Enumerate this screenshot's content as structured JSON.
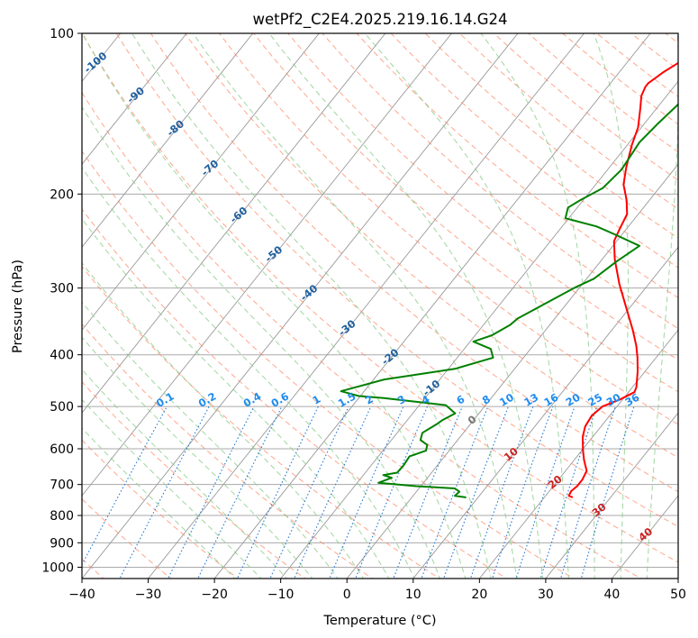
{
  "colors": {
    "temperature": "#ff0000",
    "dewpoint": "#008000",
    "isobar": "#aaaaaa",
    "isotherm": "#999999",
    "dry_adiabat": "#ff8866",
    "moist_adiabat": "#88cc88",
    "mixing_ratio": "#1f77d4",
    "iso_label_blue": "#1f5f9f",
    "iso_label_red": "#cc2222",
    "iso_label_gray": "#777777",
    "iso_label_mixing": "#1e8cf0"
  },
  "chart_data": {
    "type": "line",
    "title": "wetPf2_C2E4.2025.219.16.14.G24",
    "xlabel": "Temperature (°C)",
    "ylabel": "Pressure (hPa)",
    "xlim": [
      -40,
      50
    ],
    "ylim": [
      1050,
      100
    ],
    "y_scale": "log",
    "grid": true,
    "x_ticks": [
      "−40",
      "−30",
      "−20",
      "−10",
      "0",
      "10",
      "20",
      "30",
      "40",
      "50"
    ],
    "y_ticks": [
      "100",
      "200",
      "300",
      "400",
      "500",
      "600",
      "700",
      "800",
      "900",
      "1000"
    ],
    "series": [
      {
        "key": "temperature",
        "points": [
          [
            24.3,
            740
          ],
          [
            23.5,
            735
          ],
          [
            23.3,
            720
          ],
          [
            23.6,
            705
          ],
          [
            23.6,
            685
          ],
          [
            23.2,
            660
          ],
          [
            21.5,
            630
          ],
          [
            20.2,
            605
          ],
          [
            18.5,
            570
          ],
          [
            17.6,
            545
          ],
          [
            17.3,
            520
          ],
          [
            17.8,
            500
          ],
          [
            19.6,
            485
          ],
          [
            20.9,
            470
          ],
          [
            20.6,
            460
          ],
          [
            18.9,
            430
          ],
          [
            17.2,
            405
          ],
          [
            15.6,
            385
          ],
          [
            13.2,
            360
          ],
          [
            9.3,
            325
          ],
          [
            5.6,
            295
          ],
          [
            1.9,
            265
          ],
          [
            -0.4,
            245
          ],
          [
            -1.0,
            233
          ],
          [
            -1.7,
            218
          ],
          [
            -3.5,
            205
          ],
          [
            -5.8,
            192
          ],
          [
            -7.5,
            178
          ],
          [
            -9.3,
            162
          ],
          [
            -10.5,
            150
          ],
          [
            -12.5,
            138
          ],
          [
            -13.8,
            131
          ],
          [
            -14.3,
            126
          ],
          [
            -14.3,
            124
          ],
          [
            -13.3,
            118
          ],
          [
            -11.3,
            110
          ],
          [
            -9.5,
            104
          ],
          [
            -8.3,
            100
          ]
        ]
      },
      {
        "key": "dewpoint",
        "points": [
          [
            8.2,
            740
          ],
          [
            6.3,
            735
          ],
          [
            6.5,
            722
          ],
          [
            5.4,
            712
          ],
          [
            -0.7,
            705
          ],
          [
            -6.8,
            695
          ],
          [
            -5.4,
            680
          ],
          [
            -7.0,
            672
          ],
          [
            -5.2,
            665
          ],
          [
            -5.1,
            645
          ],
          [
            -5.3,
            620
          ],
          [
            -3.5,
            605
          ],
          [
            -4.0,
            590
          ],
          [
            -5.6,
            578
          ],
          [
            -6.2,
            560
          ],
          [
            -5.1,
            540
          ],
          [
            -4.7,
            530
          ],
          [
            -3.6,
            515
          ],
          [
            -6.0,
            497
          ],
          [
            -16.2,
            482
          ],
          [
            -20.2,
            478
          ],
          [
            -23.5,
            468
          ],
          [
            -18.4,
            445
          ],
          [
            -9.0,
            425
          ],
          [
            -4.6,
            405
          ],
          [
            -6.0,
            390
          ],
          [
            -9.5,
            378
          ],
          [
            -7.5,
            368
          ],
          [
            -6.0,
            352
          ],
          [
            -5.6,
            342
          ],
          [
            -4.3,
            330
          ],
          [
            -0.8,
            300
          ],
          [
            1.1,
            288
          ],
          [
            2.4,
            268
          ],
          [
            4.0,
            250
          ],
          [
            -1.1,
            238
          ],
          [
            -4.8,
            230
          ],
          [
            -10.5,
            222
          ],
          [
            -11.4,
            212
          ],
          [
            -10.4,
            205
          ],
          [
            -8.5,
            195
          ],
          [
            -7.9,
            180
          ],
          [
            -8.5,
            160
          ],
          [
            -8.0,
            148
          ],
          [
            -7.5,
            140
          ],
          [
            -6.7,
            128
          ],
          [
            -5.3,
            116
          ],
          [
            -3.8,
            108
          ],
          [
            -2.4,
            102
          ],
          [
            -1.4,
            100
          ]
        ]
      }
    ],
    "isotherm_labels": [
      "-100",
      "-90",
      "-80",
      "-70",
      "-60",
      "-50",
      "-40",
      "-30",
      "-20",
      "-10",
      "0",
      "10",
      "20",
      "30",
      "40"
    ],
    "mixing_ratio_labels": [
      "0.1",
      "0.2",
      "0.4",
      "0.6",
      "1",
      "1.5",
      "2",
      "3",
      "4",
      "6",
      "8",
      "10",
      "13",
      "16",
      "20",
      "25",
      "30",
      "36"
    ]
  }
}
